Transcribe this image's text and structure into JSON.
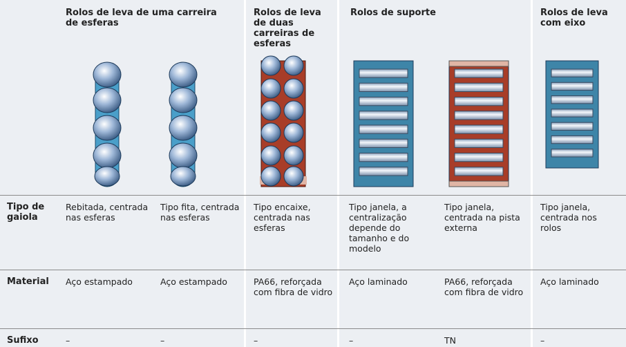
{
  "headers": [
    "Rolos de leva de uma carreira de esferas",
    "Rolos de leva de duas carreiras de esferas",
    "Rolos de suporte",
    "Rolos de leva com eixo"
  ],
  "rows": [
    {
      "label": "Tipo de gaiola",
      "cells": [
        "Rebitada, centrada nas esferas",
        "Tipo fita, centrada nas esferas",
        "Tipo encaixe, centrada nas esferas",
        "Tipo janela, a centralização depende do tamanho e do modelo",
        "Tipo janela, centrada na pista externa",
        "Tipo janela, centrada nos rolos"
      ]
    },
    {
      "label": "Material",
      "cells": [
        "Aço estampado",
        "Aço estampado",
        "PA66, reforçada com fibra de vidro",
        "Aço laminado",
        "PA66, reforçada com fibra de vidro",
        "Aço laminado"
      ]
    },
    {
      "label": "Sufixo",
      "cells": [
        "–",
        "–",
        "–",
        "–",
        "TN",
        "–"
      ]
    }
  ]
}
